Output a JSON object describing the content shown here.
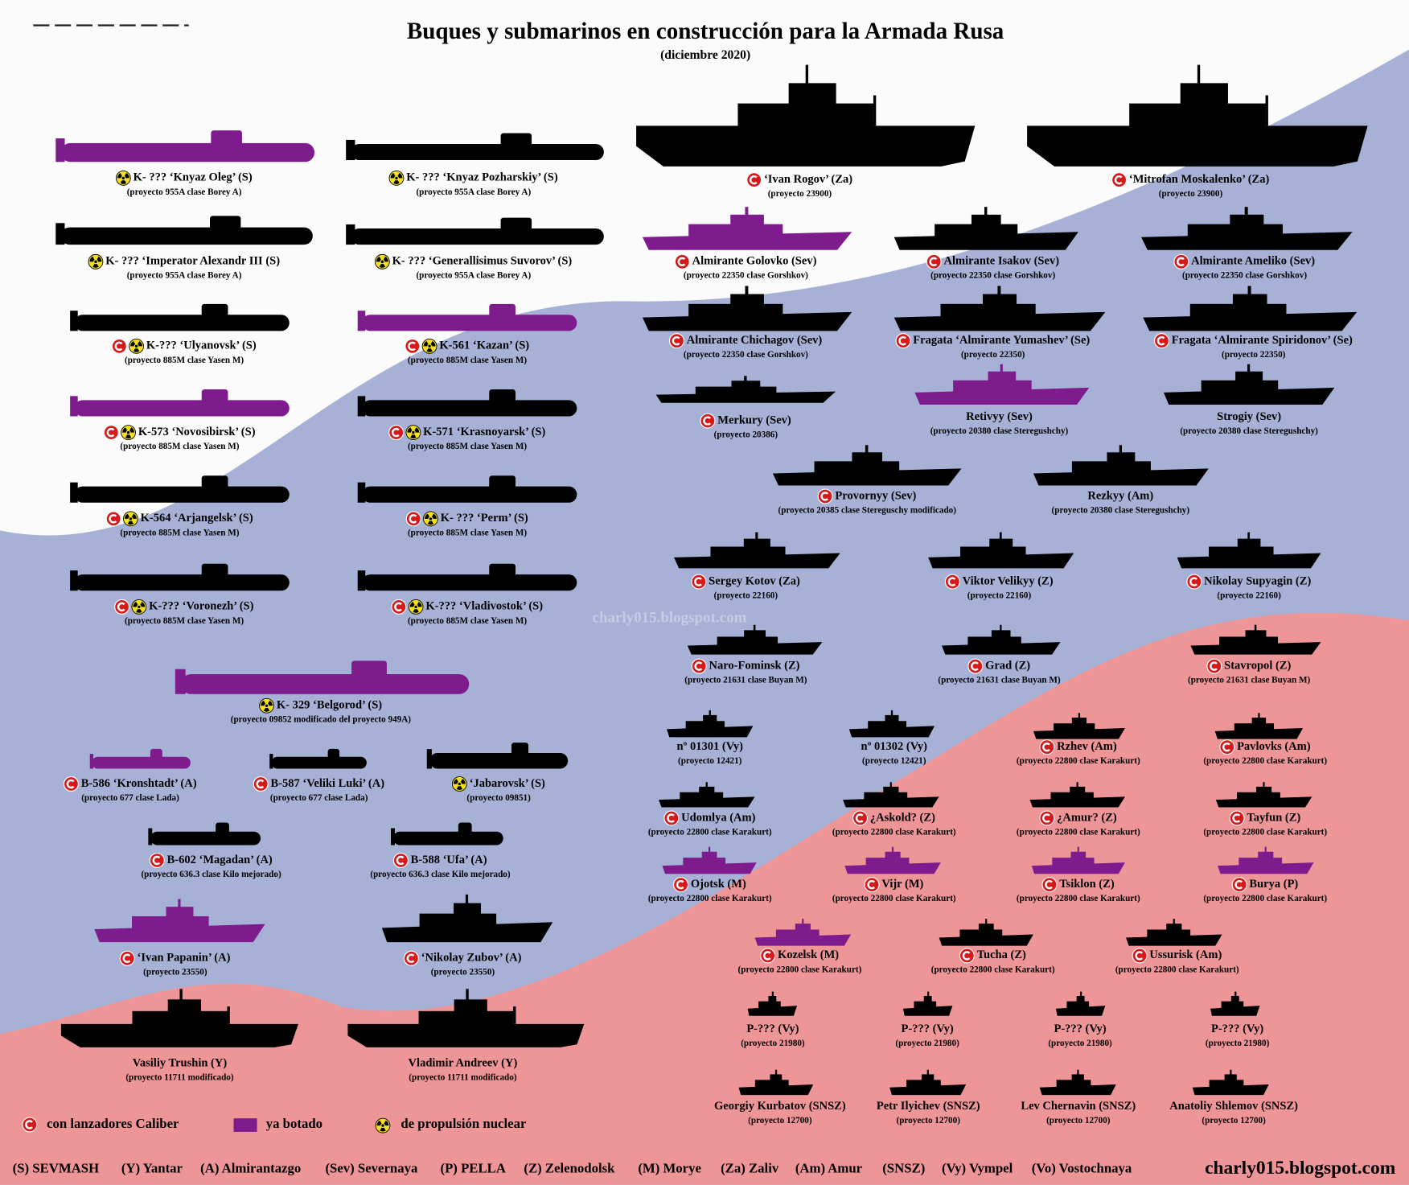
{
  "header": {
    "title": "Buques y submarinos en construcción para la Armada Rusa",
    "subtitle": "(diciembre 2020)"
  },
  "colors": {
    "launched": "#7e1c8e",
    "building": "#000000"
  },
  "vessels": [
    {
      "name": "K- ??? ‘Knyaz Oleg’ (S)",
      "project": "(proyecto 955A clase Borey A)",
      "nuclear": true,
      "launched": true
    },
    {
      "name": "K- ??? ‘Knyaz Pozharskiy’ (S)",
      "project": "(proyecto 955A clase Borey A)",
      "nuclear": true
    },
    {
      "name": "K- ??? ‘Imperator Alexandr III (S)",
      "project": "(proyecto 955A clase Borey A)",
      "nuclear": true
    },
    {
      "name": "K- ??? ‘Generallisimus Suvorov’ (S)",
      "project": "(proyecto 955A clase Borey A)",
      "nuclear": true
    },
    {
      "name": "K-??? ‘Ulyanovsk’ (S)",
      "project": "(proyecto 885M clase Yasen M)",
      "caliber": true,
      "nuclear": true
    },
    {
      "name": "K-561 ‘Kazan’ (S)",
      "project": "(proyecto 885M clase Yasen M)",
      "caliber": true,
      "nuclear": true,
      "launched": true
    },
    {
      "name": "K-573 ‘Novosibirsk’ (S)",
      "project": "(proyecto 885M clase Yasen M)",
      "caliber": true,
      "nuclear": true,
      "launched": true
    },
    {
      "name": "K-571 ‘Krasnoyarsk’ (S)",
      "project": "(proyecto 885M clase Yasen M)",
      "caliber": true,
      "nuclear": true
    },
    {
      "name": "K-564 ‘Arjangelsk’ (S)",
      "project": "(proyecto 885M clase Yasen M)",
      "caliber": true,
      "nuclear": true
    },
    {
      "name": "K- ??? ‘Perm’ (S)",
      "project": "(proyecto 885M clase Yasen M)",
      "caliber": true,
      "nuclear": true
    },
    {
      "name": "K-??? ‘Voronezh’ (S)",
      "project": "(proyecto 885M clase Yasen M)",
      "caliber": true,
      "nuclear": true
    },
    {
      "name": "K-??? ‘Vladivostok’ (S)",
      "project": "(proyecto 885M clase Yasen M)",
      "caliber": true,
      "nuclear": true
    },
    {
      "name": "K- 329 ‘Belgorod’ (S)",
      "project": "(proyecto 09852 modificado del proyecto 949A)",
      "nuclear": true,
      "launched": true
    },
    {
      "name": "B-586 ‘Kronshtadt’ (A)",
      "project": "(proyecto 677 clase Lada)",
      "caliber": true,
      "launched": true
    },
    {
      "name": "B-587 ‘Veliki Luki’ (A)",
      "project": "(proyecto 677 clase Lada)",
      "caliber": true
    },
    {
      "name": "‘Jabarovsk’ (S)",
      "project": "(proyecto 09851)",
      "nuclear": true
    },
    {
      "name": "B-602 ‘Magadan’ (A)",
      "project": "(proyecto 636.3 clase Kilo mejorado)",
      "caliber": true
    },
    {
      "name": "B-588 ‘Ufa’ (A)",
      "project": "(proyecto 636.3 clase Kilo mejorado)",
      "caliber": true
    },
    {
      "name": "‘Ivan Papanin’ (A)",
      "project": "(proyecto 23550)",
      "caliber": true,
      "launched": true
    },
    {
      "name": "‘Nikolay Zubov’ (A)",
      "project": "(proyecto 23550)",
      "caliber": true
    },
    {
      "name": "Vasiliy Trushin (Y)",
      "project": "(proyecto 11711 modificado)"
    },
    {
      "name": "Vladimir Andreev (Y)",
      "project": "(proyecto 11711 modificado)"
    },
    {
      "name": "‘Ivan Rogov’ (Za)",
      "project": "(proyecto 23900)",
      "caliber": true
    },
    {
      "name": "‘Mitrofan Moskalenko’ (Za)",
      "project": "(proyecto 23900)",
      "caliber": true
    },
    {
      "name": "Almirante Golovko (Sev)",
      "project": "(proyecto 22350 clase Gorshkov)",
      "caliber": true,
      "launched": true
    },
    {
      "name": "Almirante Isakov (Sev)",
      "project": "(proyecto 22350 clase Gorshkov)",
      "caliber": true
    },
    {
      "name": "Almirante Ameliko (Sev)",
      "project": "(proyecto 22350 clase Gorshkov)",
      "caliber": true
    },
    {
      "name": "Almirante Chichagov (Sev)",
      "project": "(proyecto 22350 clase Gorshkov)",
      "caliber": true
    },
    {
      "name": "Fragata ‘Almirante Yumashev’ (Se)",
      "project": "(proyecto  22350)",
      "caliber": true
    },
    {
      "name": "Fragata ‘Almirante Spiridonov’ (Se)",
      "project": "(proyecto  22350)",
      "caliber": true
    },
    {
      "name": "Merkury (Sev)",
      "project": "(proyecto 20386)",
      "caliber": true
    },
    {
      "name": "Retivyy (Sev)",
      "project": "(proyecto 20380 clase Steregushchy)",
      "launched": true
    },
    {
      "name": "Strogiy (Sev)",
      "project": "(proyecto 20380 clase Steregushchy)"
    },
    {
      "name": "Provornyy (Sev)",
      "project": "(proyecto 20385 clase Stereguschy modificado)",
      "caliber": true
    },
    {
      "name": "Rezkyy (Am)",
      "project": "(proyecto 20380 clase Steregushchy)"
    },
    {
      "name": "Sergey Kotov (Za)",
      "project": "(proyecto 22160)",
      "caliber": true
    },
    {
      "name": "Viktor Velikyy (Z)",
      "project": "(proyecto 22160)",
      "caliber": true
    },
    {
      "name": "Nikolay Supyagin (Z)",
      "project": "(proyecto 22160)",
      "caliber": true
    },
    {
      "name": "Naro-Fominsk (Z)",
      "project": "(proyecto 21631 clase Buyan M)",
      "caliber": true
    },
    {
      "name": "Grad (Z)",
      "project": "(proyecto 21631 clase Buyan M)",
      "caliber": true
    },
    {
      "name": "Stavropol (Z)",
      "project": "(proyecto 21631 clase Buyan M)",
      "caliber": true
    },
    {
      "name": "nº 01301 (Vy)",
      "project": "(proyecto 12421)"
    },
    {
      "name": "nº 01302 (Vy)",
      "project": "(proyecto 12421)"
    },
    {
      "name": "Rzhev (Am)",
      "project": "(proyecto 22800 clase Karakurt)",
      "caliber": true
    },
    {
      "name": "Pavlovks (Am)",
      "project": "(proyecto 22800 clase Karakurt)",
      "caliber": true
    },
    {
      "name": "Udomlya (Am)",
      "project": "(proyecto 22800 clase Karakurt)",
      "caliber": true
    },
    {
      "name": "¿Askold? (Z)",
      "project": "(proyecto 22800 clase Karakurt)",
      "caliber": true
    },
    {
      "name": "¿Amur? (Z)",
      "project": "(proyecto 22800 clase Karakurt)",
      "caliber": true
    },
    {
      "name": "Tayfun (Z)",
      "project": "(proyecto 22800 clase Karakurt)",
      "caliber": true
    },
    {
      "name": "Ojotsk (M)",
      "project": "(proyecto 22800 clase Karakurt)",
      "caliber": true,
      "launched": true
    },
    {
      "name": "Vijr (M)",
      "project": "(proyecto 22800 clase Karakurt)",
      "caliber": true,
      "launched": true
    },
    {
      "name": "Tsiklon (Z)",
      "project": "(proyecto 22800 clase Karakurt)",
      "caliber": true,
      "launched": true
    },
    {
      "name": "Burya (P)",
      "project": "(proyecto 22800 clase Karakurt)",
      "caliber": true,
      "launched": true
    },
    {
      "name": "Kozelsk (M)",
      "project": "(proyecto 22800 clase Karakurt)",
      "caliber": true,
      "launched": true
    },
    {
      "name": "Tucha (Z)",
      "project": "(proyecto 22800 clase Karakurt)",
      "caliber": true
    },
    {
      "name": "Ussurisk (Am)",
      "project": "(proyecto 22800 clase Karakurt)",
      "caliber": true
    },
    {
      "name": "P-??? (Vy)",
      "project": "(proyecto 21980)"
    },
    {
      "name": "P-??? (Vy)",
      "project": "(proyecto 21980)"
    },
    {
      "name": "P-??? (Vy)",
      "project": "(proyecto 21980)"
    },
    {
      "name": "P-??? (Vy)",
      "project": "(proyecto 21980)"
    },
    {
      "name": "Georgiy Kurbatov (SNSZ)",
      "project": "(proyecto 12700)"
    },
    {
      "name": "Petr Ilyichev (SNSZ)",
      "project": "(proyecto 12700)"
    },
    {
      "name": "Lev Chernavin (SNSZ)",
      "project": "(proyecto 12700)"
    },
    {
      "name": "Anatoliy Shlemov (SNSZ)",
      "project": "(proyecto 12700)"
    }
  ],
  "legend": {
    "caliber": "con lanzadores Caliber",
    "launched": "ya botado",
    "nuclear": "de propulsión nuclear"
  },
  "shipyards": [
    "(S) SEVMASH",
    "(Y) Yantar",
    "(A) Almirantazgo",
    "(Sev) Severnaya",
    "(P) PELLA",
    "(Z) Zelenodolsk",
    "(M) Morye",
    "(Za) Zaliv",
    "(Am) Amur",
    "(SNSZ)",
    "(Vy) Vympel",
    "(Vo) Vostochnaya"
  ],
  "watermark": "charly015.blogspot.com",
  "source": "charly015.blogspot.com"
}
